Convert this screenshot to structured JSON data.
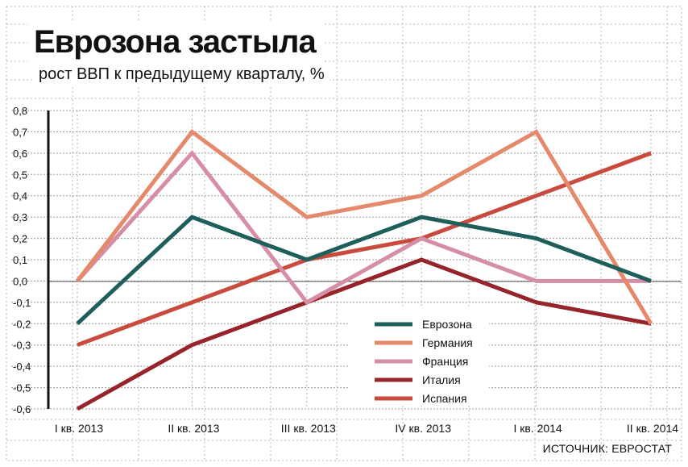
{
  "chart_data": {
    "type": "line",
    "title": "Еврозона застыла",
    "subtitle": "рост ВВП к предыдущему кварталу, %",
    "categories": [
      "I кв. 2013",
      "II кв. 2013",
      "III кв. 2013",
      "IV кв. 2013",
      "I кв. 2014",
      "II кв. 2014"
    ],
    "ylim": [
      -0.6,
      0.8
    ],
    "yticks": [
      0.8,
      0.7,
      0.6,
      0.5,
      0.4,
      0.3,
      0.2,
      0.1,
      0.0,
      -0.1,
      -0.2,
      -0.3,
      -0.4,
      -0.5,
      -0.6
    ],
    "ytick_labels": [
      "0,8",
      "0,7",
      "0,6",
      "0,5",
      "0,4",
      "0,3",
      "0,2",
      "0,1",
      "0,0",
      "-0,1",
      "-0,2",
      "-0,3",
      "-0,4",
      "-0,5",
      "-0,6"
    ],
    "grid": true,
    "legend_position": "bottom-center",
    "series": [
      {
        "name": "Еврозона",
        "color": "#1f5f5b",
        "values": [
          -0.2,
          0.3,
          0.1,
          0.3,
          0.2,
          0.0
        ]
      },
      {
        "name": "Германия",
        "color": "#e5896b",
        "values": [
          0.0,
          0.7,
          0.3,
          0.4,
          0.7,
          -0.2
        ]
      },
      {
        "name": "Франция",
        "color": "#d58ea6",
        "values": [
          0.0,
          0.6,
          -0.1,
          0.2,
          0.0,
          0.0
        ]
      },
      {
        "name": "Италия",
        "color": "#97232b",
        "values": [
          -0.6,
          -0.3,
          -0.1,
          0.1,
          -0.1,
          -0.2
        ]
      },
      {
        "name": "Испания",
        "color": "#c94b3e",
        "values": [
          -0.3,
          -0.1,
          0.1,
          0.2,
          0.4,
          0.6
        ]
      }
    ],
    "source": "ИСТОЧНИК: ЕВРОСТАТ"
  }
}
